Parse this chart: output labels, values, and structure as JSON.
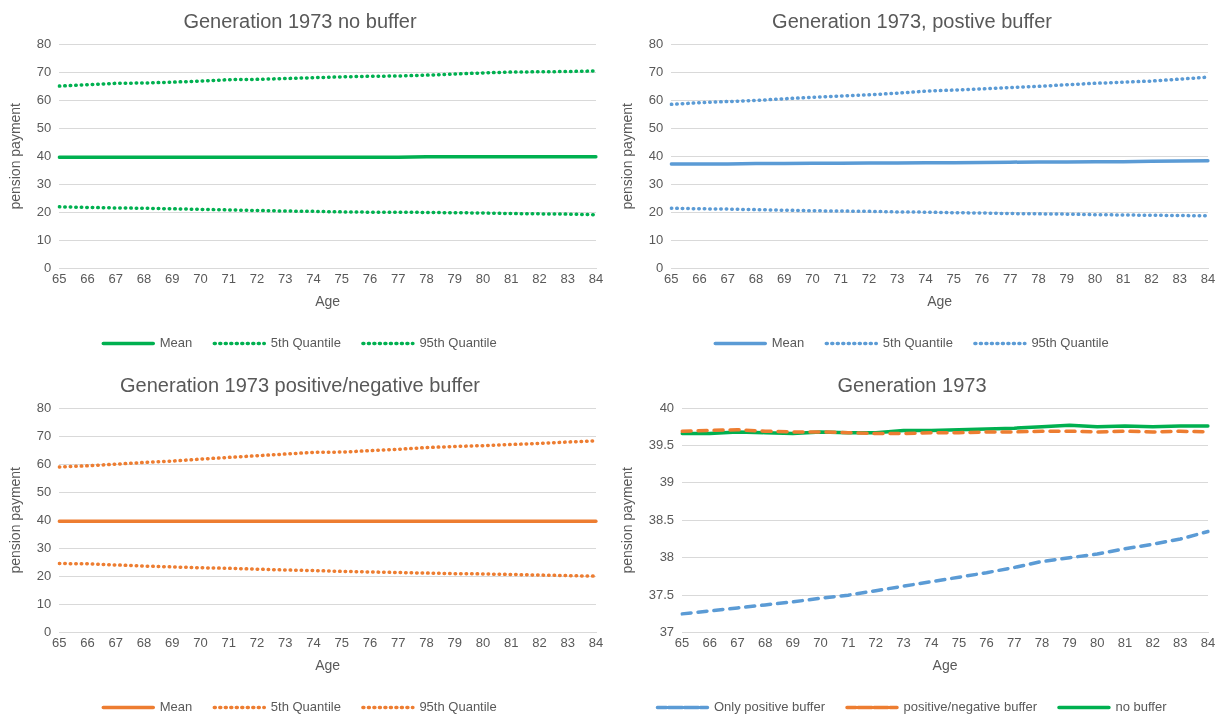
{
  "chart_data": [
    {
      "type": "line",
      "title": "Generation 1973 no buffer",
      "xlabel": "Age",
      "ylabel": "pension payment",
      "categories": [
        "65",
        "66",
        "67",
        "68",
        "69",
        "70",
        "71",
        "72",
        "73",
        "74",
        "75",
        "76",
        "77",
        "78",
        "79",
        "80",
        "81",
        "82",
        "83",
        "84"
      ],
      "ylim": [
        0,
        80
      ],
      "yticks": [
        0,
        10,
        20,
        30,
        40,
        50,
        60,
        70,
        80
      ],
      "grid": "y",
      "legend": "bottom",
      "marker": "none",
      "series": [
        {
          "name": "Mean",
          "color": "#00b050",
          "line_style": "solid",
          "values": [
            39.7,
            39.7,
            39.7,
            39.7,
            39.7,
            39.7,
            39.7,
            39.7,
            39.7,
            39.7,
            39.7,
            39.7,
            39.7,
            39.8,
            39.8,
            39.8,
            39.8,
            39.8,
            39.8,
            39.8
          ]
        },
        {
          "name": "5th Quantile",
          "color": "#00b050",
          "line_style": "dotted",
          "values": [
            22,
            21.8,
            21.6,
            21.5,
            21.3,
            21.1,
            20.9,
            20.7,
            20.5,
            20.4,
            20.2,
            20.1,
            20.1,
            20,
            19.9,
            19.8,
            19.6,
            19.5,
            19.4,
            19.2
          ]
        },
        {
          "name": "95th Quantile",
          "color": "#00b050",
          "line_style": "dotted",
          "values": [
            65,
            65.5,
            66,
            66.1,
            66.4,
            66.8,
            67.3,
            67.4,
            67.7,
            68,
            68.3,
            68.5,
            68.6,
            68.9,
            69.3,
            69.7,
            70,
            70.1,
            70.2,
            70.4
          ]
        }
      ]
    },
    {
      "type": "line",
      "title": "Generation 1973, postive buffer",
      "xlabel": "Age",
      "ylabel": "pension payment",
      "categories": [
        "65",
        "66",
        "67",
        "68",
        "69",
        "70",
        "71",
        "72",
        "73",
        "74",
        "75",
        "76",
        "77",
        "78",
        "79",
        "80",
        "81",
        "82",
        "83",
        "84"
      ],
      "ylim": [
        0,
        80
      ],
      "yticks": [
        0,
        10,
        20,
        30,
        40,
        50,
        60,
        70,
        80
      ],
      "grid": "y",
      "legend": "bottom",
      "marker": "none",
      "series": [
        {
          "name": "Mean",
          "color": "#5b9bd5",
          "line_style": "solid",
          "values": [
            37.3,
            37.3,
            37.3,
            37.4,
            37.4,
            37.5,
            37.5,
            37.6,
            37.6,
            37.7,
            37.7,
            37.8,
            37.9,
            38.0,
            38.0,
            38.1,
            38.1,
            38.2,
            38.3,
            38.4
          ]
        },
        {
          "name": "5th Quantile",
          "color": "#5b9bd5",
          "line_style": "dotted",
          "values": [
            21.5,
            21.3,
            21.2,
            21,
            20.8,
            20.6,
            20.5,
            20.4,
            20.2,
            20.1,
            19.9,
            19.8,
            19.6,
            19.5,
            19.4,
            19.2,
            19.1,
            19,
            18.9,
            18.8
          ]
        },
        {
          "name": "95th Quantile",
          "color": "#5b9bd5",
          "line_style": "dotted",
          "values": [
            58.5,
            59.1,
            59.5,
            59.9,
            60.5,
            61,
            61.5,
            61.9,
            62.5,
            63.2,
            63.6,
            64,
            64.5,
            64.9,
            65.5,
            66,
            66.4,
            66.8,
            67.5,
            68.2
          ]
        }
      ]
    },
    {
      "type": "line",
      "title": "Generation 1973 positive/negative buffer",
      "xlabel": "Age",
      "ylabel": "pension payment",
      "categories": [
        "65",
        "66",
        "67",
        "68",
        "69",
        "70",
        "71",
        "72",
        "73",
        "74",
        "75",
        "76",
        "77",
        "78",
        "79",
        "80",
        "81",
        "82",
        "83",
        "84"
      ],
      "ylim": [
        0,
        80
      ],
      "yticks": [
        0,
        10,
        20,
        30,
        40,
        50,
        60,
        70,
        80
      ],
      "grid": "y",
      "legend": "bottom",
      "marker": "none",
      "series": [
        {
          "name": "Mean",
          "color": "#ed7d31",
          "line_style": "solid",
          "values": [
            39.7,
            39.7,
            39.7,
            39.7,
            39.7,
            39.7,
            39.7,
            39.7,
            39.7,
            39.7,
            39.7,
            39.7,
            39.7,
            39.7,
            39.7,
            39.7,
            39.7,
            39.7,
            39.7,
            39.7
          ]
        },
        {
          "name": "5th Quantile",
          "color": "#ed7d31",
          "line_style": "dotted",
          "values": [
            24.6,
            24.5,
            24.1,
            23.7,
            23.4,
            23.1,
            22.9,
            22.6,
            22.3,
            22.1,
            21.8,
            21.6,
            21.4,
            21.2,
            21,
            20.9,
            20.7,
            20.5,
            20.3,
            20.1
          ]
        },
        {
          "name": "95th Quantile",
          "color": "#ed7d31",
          "line_style": "dotted",
          "values": [
            59,
            59.4,
            60,
            60.6,
            61.1,
            61.8,
            62.4,
            63,
            63.6,
            64.2,
            64.3,
            64.8,
            65.3,
            65.9,
            66.3,
            66.6,
            67,
            67.4,
            67.9,
            68.3
          ]
        }
      ]
    },
    {
      "type": "line",
      "title": "Generation 1973",
      "xlabel": "Age",
      "ylabel": "pension payment",
      "categories": [
        "65",
        "66",
        "67",
        "68",
        "69",
        "70",
        "71",
        "72",
        "73",
        "74",
        "75",
        "76",
        "77",
        "78",
        "79",
        "80",
        "81",
        "82",
        "83",
        "84"
      ],
      "ylim": [
        37,
        40
      ],
      "yticks": [
        37,
        37.5,
        38,
        38.5,
        39,
        39.5,
        40
      ],
      "grid": "y",
      "legend": "bottom",
      "marker": "none",
      "series": [
        {
          "name": "Only positive buffer",
          "color": "#5b9bd5",
          "line_style": "dashed",
          "values": [
            37.25,
            37.29,
            37.33,
            37.37,
            37.41,
            37.46,
            37.5,
            37.56,
            37.62,
            37.68,
            37.74,
            37.8,
            37.87,
            37.95,
            38.0,
            38.05,
            38.12,
            38.18,
            38.25,
            38.35
          ]
        },
        {
          "name": "positive/negative buffer",
          "color": "#ed7d31",
          "line_style": "dashed",
          "values": [
            39.69,
            39.7,
            39.71,
            39.69,
            39.68,
            39.68,
            39.67,
            39.66,
            39.66,
            39.67,
            39.67,
            39.68,
            39.68,
            39.69,
            39.69,
            39.68,
            39.69,
            39.68,
            39.69,
            39.68
          ]
        },
        {
          "name": "no buffer",
          "color": "#00b050",
          "line_style": "solid",
          "values": [
            39.66,
            39.66,
            39.68,
            39.67,
            39.66,
            39.68,
            39.67,
            39.67,
            39.7,
            39.7,
            39.71,
            39.72,
            39.73,
            39.75,
            39.77,
            39.75,
            39.76,
            39.75,
            39.76,
            39.76
          ]
        }
      ]
    }
  ]
}
